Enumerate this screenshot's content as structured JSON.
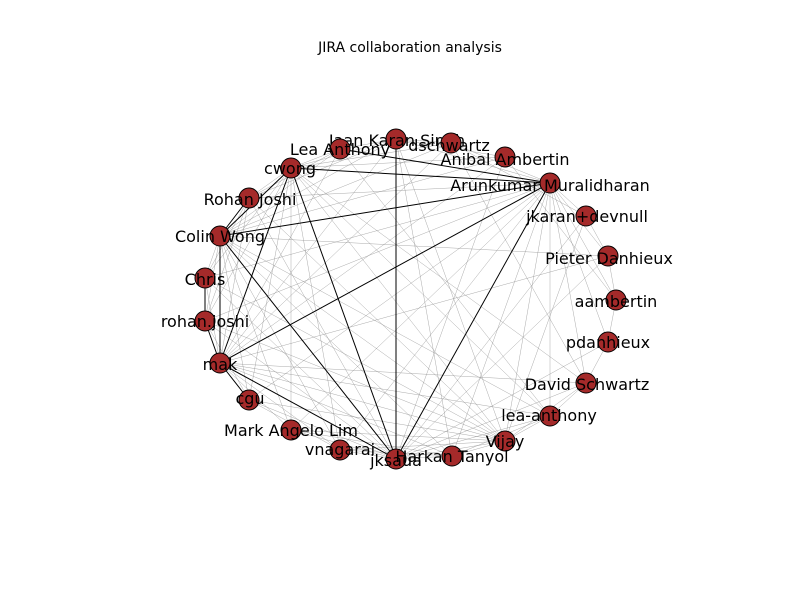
{
  "title": "JIRA collaboration analysis",
  "colors": {
    "node_fill": "#a52a2a",
    "node_stroke": "#000000",
    "edge_strong": "#000000",
    "edge_weak": "#888888"
  },
  "nodes": [
    {
      "id": "jaan",
      "label": "Jaan Karan Singh"
    },
    {
      "id": "dschwartz",
      "label": "dschwartz"
    },
    {
      "id": "lea",
      "label": "Lea Anthony"
    },
    {
      "id": "anibal",
      "label": "Anibal Ambertin"
    },
    {
      "id": "cwong",
      "label": "cwong"
    },
    {
      "id": "arunkumar",
      "label": "Arunkumar Muralidharan"
    },
    {
      "id": "rohan",
      "label": "Rohan Joshi"
    },
    {
      "id": "jkaran",
      "label": "jkaran+devnull"
    },
    {
      "id": "colin",
      "label": "Colin Wong"
    },
    {
      "id": "pieter",
      "label": "Pieter Danhieux"
    },
    {
      "id": "chris",
      "label": "Chris"
    },
    {
      "id": "aambertin",
      "label": "aambertin"
    },
    {
      "id": "rohanj",
      "label": "rohan.joshi"
    },
    {
      "id": "pdanhieux",
      "label": "pdanhieux"
    },
    {
      "id": "mak",
      "label": "mak"
    },
    {
      "id": "david",
      "label": "David Schwartz"
    },
    {
      "id": "cgu",
      "label": "cgu"
    },
    {
      "id": "leaa",
      "label": "lea-anthony"
    },
    {
      "id": "mark",
      "label": "Mark Angelo Lim"
    },
    {
      "id": "vijay",
      "label": "Vijay"
    },
    {
      "id": "vnagarai",
      "label": "vnagarai"
    },
    {
      "id": "jksaua",
      "label": "jksaua"
    },
    {
      "id": "harkan",
      "label": "Harkan Tanyol"
    }
  ],
  "strong_edges": [
    [
      "cwong",
      "arunkumar"
    ],
    [
      "cwong",
      "colin"
    ],
    [
      "cwong",
      "mak"
    ],
    [
      "cwong",
      "jksaua"
    ],
    [
      "colin",
      "arunkumar"
    ],
    [
      "colin",
      "mak"
    ],
    [
      "colin",
      "jksaua"
    ],
    [
      "rohan",
      "colin"
    ],
    [
      "mak",
      "arunkumar"
    ],
    [
      "mak",
      "jksaua"
    ],
    [
      "arunkumar",
      "jksaua"
    ],
    [
      "arunkumar",
      "lea"
    ],
    [
      "jaan",
      "jksaua"
    ],
    [
      "chris",
      "rohanj"
    ],
    [
      "rohanj",
      "mak"
    ],
    [
      "mak",
      "cgu"
    ]
  ],
  "weak_edges": [
    [
      "jaan",
      "dschwartz"
    ],
    [
      "jaan",
      "lea"
    ],
    [
      "jaan",
      "anibal"
    ],
    [
      "jaan",
      "cwong"
    ],
    [
      "jaan",
      "arunkumar"
    ],
    [
      "jaan",
      "rohan"
    ],
    [
      "jaan",
      "colin"
    ],
    [
      "jaan",
      "mak"
    ],
    [
      "jaan",
      "vijay"
    ],
    [
      "jaan",
      "harkan"
    ],
    [
      "dschwartz",
      "cwong"
    ],
    [
      "dschwartz",
      "arunkumar"
    ],
    [
      "dschwartz",
      "colin"
    ],
    [
      "dschwartz",
      "mak"
    ],
    [
      "dschwartz",
      "david"
    ],
    [
      "lea",
      "cwong"
    ],
    [
      "lea",
      "colin"
    ],
    [
      "lea",
      "mak"
    ],
    [
      "lea",
      "leaa"
    ],
    [
      "lea",
      "rohan"
    ],
    [
      "anibal",
      "cwong"
    ],
    [
      "anibal",
      "colin"
    ],
    [
      "anibal",
      "mak"
    ],
    [
      "anibal",
      "aambertin"
    ],
    [
      "anibal",
      "jksaua"
    ],
    [
      "cwong",
      "rohan"
    ],
    [
      "cwong",
      "chris"
    ],
    [
      "cwong",
      "rohanj"
    ],
    [
      "cwong",
      "cgu"
    ],
    [
      "cwong",
      "mark"
    ],
    [
      "cwong",
      "vnagarai"
    ],
    [
      "cwong",
      "vijay"
    ],
    [
      "arunkumar",
      "rohan"
    ],
    [
      "arunkumar",
      "chris"
    ],
    [
      "arunkumar",
      "rohanj"
    ],
    [
      "arunkumar",
      "cgu"
    ],
    [
      "arunkumar",
      "mark"
    ],
    [
      "arunkumar",
      "vnagarai"
    ],
    [
      "arunkumar",
      "vijay"
    ],
    [
      "arunkumar",
      "harkan"
    ],
    [
      "arunkumar",
      "jkaran"
    ],
    [
      "arunkumar",
      "pieter"
    ],
    [
      "arunkumar",
      "aambertin"
    ],
    [
      "arunkumar",
      "pdanhieux"
    ],
    [
      "arunkumar",
      "david"
    ],
    [
      "arunkumar",
      "leaa"
    ],
    [
      "rohan",
      "chris"
    ],
    [
      "rohan",
      "rohanj"
    ],
    [
      "rohan",
      "mak"
    ],
    [
      "rohan",
      "jksaua"
    ],
    [
      "rohan",
      "vijay"
    ],
    [
      "colin",
      "chris"
    ],
    [
      "colin",
      "rohanj"
    ],
    [
      "colin",
      "cgu"
    ],
    [
      "colin",
      "mark"
    ],
    [
      "colin",
      "vnagarai"
    ],
    [
      "colin",
      "vijay"
    ],
    [
      "colin",
      "harkan"
    ],
    [
      "colin",
      "leaa"
    ],
    [
      "chris",
      "mak"
    ],
    [
      "chris",
      "jksaua"
    ],
    [
      "chris",
      "vijay"
    ],
    [
      "rohanj",
      "jksaua"
    ],
    [
      "rohanj",
      "vijay"
    ],
    [
      "rohanj",
      "cgu"
    ],
    [
      "mak",
      "mark"
    ],
    [
      "mak",
      "vnagarai"
    ],
    [
      "mak",
      "vijay"
    ],
    [
      "mak",
      "harkan"
    ],
    [
      "mak",
      "leaa"
    ],
    [
      "mak",
      "david"
    ],
    [
      "mak",
      "pieter"
    ],
    [
      "cgu",
      "jksaua"
    ],
    [
      "cgu",
      "vijay"
    ],
    [
      "cgu",
      "vnagarai"
    ],
    [
      "mark",
      "jksaua"
    ],
    [
      "mark",
      "vijay"
    ],
    [
      "mark",
      "harkan"
    ],
    [
      "vnagarai",
      "jksaua"
    ],
    [
      "vnagarai",
      "vijay"
    ],
    [
      "vnagarai",
      "harkan"
    ],
    [
      "jksaua",
      "vijay"
    ],
    [
      "jksaua",
      "harkan"
    ],
    [
      "jksaua",
      "leaa"
    ],
    [
      "jksaua",
      "david"
    ],
    [
      "jksaua",
      "jkaran"
    ],
    [
      "jksaua",
      "pieter"
    ],
    [
      "harkan",
      "vijay"
    ],
    [
      "harkan",
      "leaa"
    ],
    [
      "vijay",
      "leaa"
    ],
    [
      "vijay",
      "david"
    ],
    [
      "vijay",
      "jkaran"
    ],
    [
      "leaa",
      "david"
    ],
    [
      "david",
      "pdanhieux"
    ],
    [
      "pdanhieux",
      "aambertin"
    ],
    [
      "aambertin",
      "pieter"
    ],
    [
      "pieter",
      "jkaran"
    ],
    [
      "jkaran",
      "dschwartz"
    ],
    [
      "david",
      "cwong"
    ],
    [
      "pieter",
      "colin"
    ],
    [
      "leaa",
      "cwong"
    ],
    [
      "pdanhieux",
      "jksaua"
    ]
  ]
}
